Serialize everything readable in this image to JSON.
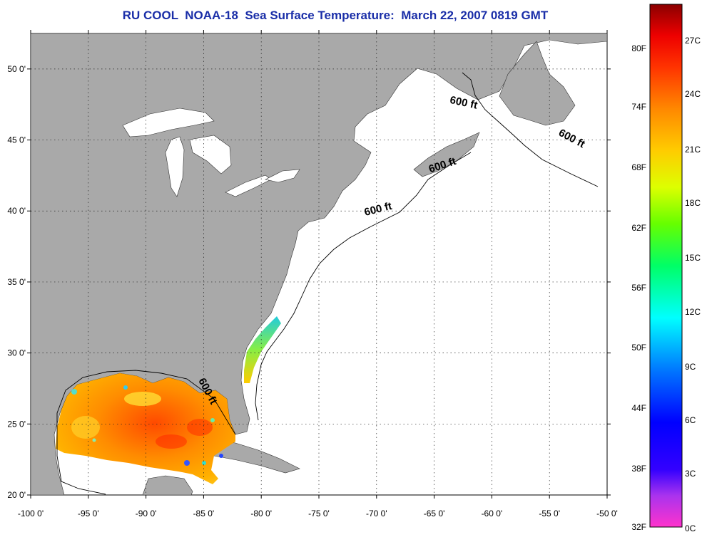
{
  "title": "RU COOL  NOAA-18  Sea Surface Temperature:  March 22, 2007 0819 GMT",
  "map": {
    "lon_range": [
      -100,
      -50
    ],
    "lat_range": [
      20,
      52.5
    ],
    "lon_ticks": [
      {
        "value": -100,
        "label": "-100 0'"
      },
      {
        "value": -95,
        "label": "-95 0'"
      },
      {
        "value": -90,
        "label": "-90 0'"
      },
      {
        "value": -85,
        "label": "-85 0'"
      },
      {
        "value": -80,
        "label": "-80 0'"
      },
      {
        "value": -75,
        "label": "-75 0'"
      },
      {
        "value": -70,
        "label": "-70 0'"
      },
      {
        "value": -65,
        "label": "-65 0'"
      },
      {
        "value": -60,
        "label": "-60 0'"
      },
      {
        "value": -55,
        "label": "-55 0'"
      },
      {
        "value": -50,
        "label": "-50 0'"
      }
    ],
    "lat_ticks": [
      {
        "value": 20,
        "label": "20 0'"
      },
      {
        "value": 25,
        "label": "25 0'"
      },
      {
        "value": 30,
        "label": "30 0'"
      },
      {
        "value": 35,
        "label": "35 0'"
      },
      {
        "value": 40,
        "label": "40 0'"
      },
      {
        "value": 45,
        "label": "45 0'"
      },
      {
        "value": 50,
        "label": "50 0'"
      }
    ],
    "grid": "dotted",
    "land_color": "#a9a9a9",
    "no_data_color": "#ffffff",
    "contour_labels": [
      {
        "text": "600 ft",
        "lon": -62.5,
        "lat": 47.4,
        "rotate": 12
      },
      {
        "text": "600 ft",
        "lon": -53.2,
        "lat": 44.9,
        "rotate": 28
      },
      {
        "text": "600 ft",
        "lon": -64.2,
        "lat": 43.0,
        "rotate": -18
      },
      {
        "text": "600 ft",
        "lon": -69.8,
        "lat": 39.9,
        "rotate": -14
      },
      {
        "text": "600 ft",
        "lon": -84.9,
        "lat": 27.2,
        "rotate": 62
      }
    ]
  },
  "colorbar": {
    "fahrenheit_labels": [
      "80F",
      "74F",
      "68F",
      "62F",
      "56F",
      "50F",
      "44F",
      "38F",
      "32F"
    ],
    "celsius_labels": [
      "27C",
      "24C",
      "21C",
      "18C",
      "15C",
      "12C",
      "9C",
      "6C",
      "3C",
      "0C"
    ],
    "colors": [
      "#ff33cc",
      "#8a2be2",
      "#0000ff",
      "#0077ff",
      "#00ffff",
      "#00ff66",
      "#ccff00",
      "#ffee00",
      "#ffa500",
      "#ff5a00",
      "#ff0000",
      "#a00000"
    ]
  }
}
